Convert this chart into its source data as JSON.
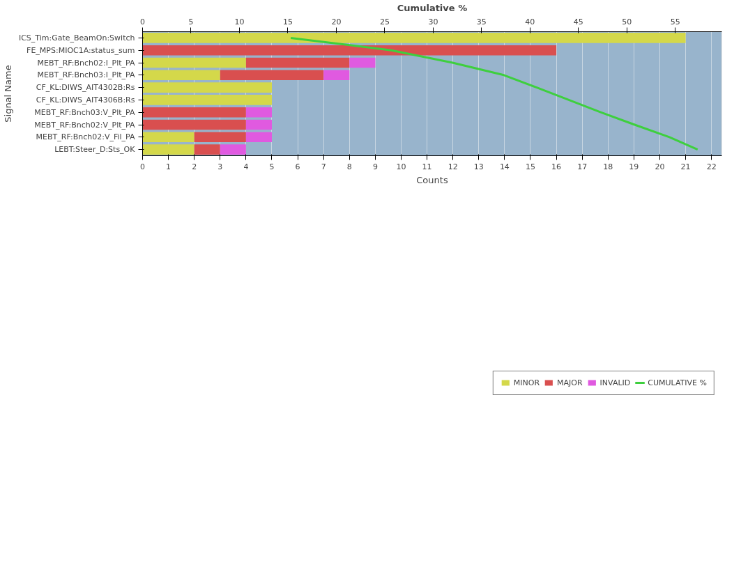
{
  "chart_data": {
    "type": "bar",
    "orientation": "horizontal",
    "stacked": true,
    "xlabel": "Counts",
    "x2label": "Cumulative %",
    "ylabel": "Signal Name",
    "categories": [
      "ICS_Tim:Gate_BeamOn:Switch",
      "FE_MPS:MIOC1A:status_sum",
      "MEBT_RF:Bnch02:I_Plt_PA",
      "MEBT_RF:Bnch03:I_Plt_PA",
      "CF_KL:DIWS_AIT4302B:Rs",
      "CF_KL:DIWS_AIT4306B:Rs",
      "MEBT_RF:Bnch03:V_Plt_PA",
      "MEBT_RF:Bnch02:V_Plt_PA",
      "MEBT_RF:Bnch02:V_Fil_PA",
      "LEBT:Steer_D:Sts_OK"
    ],
    "series": [
      {
        "name": "MINOR",
        "color": "#d4d84a",
        "values": [
          21,
          0,
          4,
          3,
          5,
          5,
          0,
          0,
          2,
          2
        ]
      },
      {
        "name": "MAJOR",
        "color": "#d94f4f",
        "values": [
          0,
          16,
          4,
          4,
          0,
          0,
          4,
          4,
          2,
          1
        ]
      },
      {
        "name": "INVALID",
        "color": "#e05ae0",
        "values": [
          0,
          0,
          1,
          1,
          0,
          0,
          1,
          1,
          1,
          1
        ]
      },
      {
        "name": "CUMULATIVE %",
        "color": "#3ecf3e",
        "type": "line",
        "axis": "x2",
        "values": [
          15.3,
          25.7,
          32,
          37.3,
          40.7,
          44,
          47.3,
          50.8,
          54.4,
          57.3
        ]
      }
    ],
    "xlim": [
      0,
      22.4
    ],
    "xticks": [
      0,
      1,
      2,
      3,
      4,
      5,
      6,
      7,
      8,
      9,
      10,
      11,
      12,
      13,
      14,
      15,
      16,
      17,
      18,
      19,
      20,
      21,
      22
    ],
    "x2lim": [
      0,
      59.8
    ],
    "x2ticks": [
      0,
      5,
      10,
      15,
      20,
      25,
      30,
      35,
      40,
      45,
      50,
      55
    ],
    "grid": "x",
    "legend": "bottom"
  }
}
